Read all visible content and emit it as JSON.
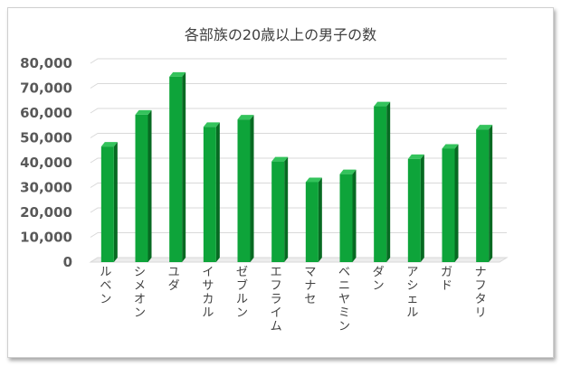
{
  "chart_data": {
    "type": "bar",
    "title": "各部族の20歳以上の男子の数",
    "categories": [
      "ルベン",
      "シメオン",
      "ユダ",
      "イサカル",
      "ゼブルン",
      "エフライム",
      "マナセ",
      "ベニヤミン",
      "ダン",
      "アシェル",
      "ガド",
      "ナフタリ"
    ],
    "values": [
      46500,
      59300,
      74600,
      54400,
      57400,
      40500,
      32200,
      35400,
      62700,
      41500,
      45650,
      53400
    ],
    "ylim": [
      0,
      80000
    ],
    "yticks": [
      0,
      10000,
      20000,
      30000,
      40000,
      50000,
      60000,
      70000,
      80000
    ],
    "ytick_labels": [
      "0",
      "10,000",
      "20,000",
      "30,000",
      "40,000",
      "50,000",
      "60,000",
      "70,000",
      "80,000"
    ],
    "grid": true,
    "legend": "none",
    "colors": {
      "bar_front": "#0ea43a",
      "bar_side": "#076a22",
      "bar_top": "#34c35c",
      "grid": "#d9d9d9"
    }
  }
}
